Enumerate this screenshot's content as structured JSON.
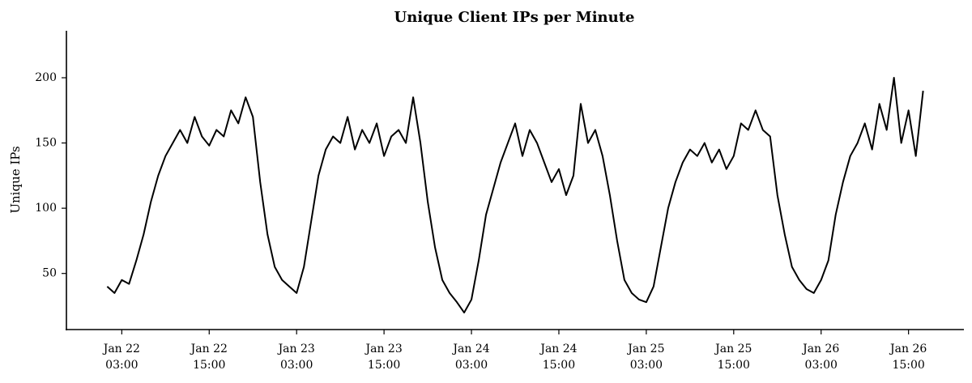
{
  "chart_data": {
    "type": "line",
    "title": "Unique Client IPs per Minute",
    "ylabel": "Unique IPs",
    "x": [
      "Jan 22 01:00",
      "Jan 22 02:00",
      "Jan 22 03:00",
      "Jan 22 04:00",
      "Jan 22 05:00",
      "Jan 22 06:00",
      "Jan 22 07:00",
      "Jan 22 08:00",
      "Jan 22 09:00",
      "Jan 22 10:00",
      "Jan 22 11:00",
      "Jan 22 12:00",
      "Jan 22 13:00",
      "Jan 22 14:00",
      "Jan 22 15:00",
      "Jan 22 16:00",
      "Jan 22 17:00",
      "Jan 22 18:00",
      "Jan 22 19:00",
      "Jan 22 20:00",
      "Jan 22 21:00",
      "Jan 22 22:00",
      "Jan 22 23:00",
      "Jan 23 00:00",
      "Jan 23 01:00",
      "Jan 23 02:00",
      "Jan 23 03:00",
      "Jan 23 04:00",
      "Jan 23 05:00",
      "Jan 23 06:00",
      "Jan 23 07:00",
      "Jan 23 08:00",
      "Jan 23 09:00",
      "Jan 23 10:00",
      "Jan 23 11:00",
      "Jan 23 12:00",
      "Jan 23 13:00",
      "Jan 23 14:00",
      "Jan 23 15:00",
      "Jan 23 16:00",
      "Jan 23 17:00",
      "Jan 23 18:00",
      "Jan 23 19:00",
      "Jan 23 20:00",
      "Jan 23 21:00",
      "Jan 23 22:00",
      "Jan 23 23:00",
      "Jan 24 00:00",
      "Jan 24 01:00",
      "Jan 24 02:00",
      "Jan 24 03:00",
      "Jan 24 04:00",
      "Jan 24 05:00",
      "Jan 24 06:00",
      "Jan 24 07:00",
      "Jan 24 08:00",
      "Jan 24 09:00",
      "Jan 24 10:00",
      "Jan 24 11:00",
      "Jan 24 12:00",
      "Jan 24 13:00",
      "Jan 24 14:00",
      "Jan 24 15:00",
      "Jan 24 16:00",
      "Jan 24 17:00",
      "Jan 24 18:00",
      "Jan 24 19:00",
      "Jan 24 20:00",
      "Jan 24 21:00",
      "Jan 24 22:00",
      "Jan 24 23:00",
      "Jan 25 00:00",
      "Jan 25 01:00",
      "Jan 25 02:00",
      "Jan 25 03:00",
      "Jan 25 04:00",
      "Jan 25 05:00",
      "Jan 25 06:00",
      "Jan 25 07:00",
      "Jan 25 08:00",
      "Jan 25 09:00",
      "Jan 25 10:00",
      "Jan 25 11:00",
      "Jan 25 12:00",
      "Jan 25 13:00",
      "Jan 25 14:00",
      "Jan 25 15:00",
      "Jan 25 16:00",
      "Jan 25 17:00",
      "Jan 25 18:00",
      "Jan 25 19:00",
      "Jan 25 20:00",
      "Jan 25 21:00",
      "Jan 25 22:00",
      "Jan 25 23:00",
      "Jan 26 00:00",
      "Jan 26 01:00",
      "Jan 26 02:00",
      "Jan 26 03:00",
      "Jan 26 04:00",
      "Jan 26 05:00",
      "Jan 26 06:00",
      "Jan 26 07:00",
      "Jan 26 08:00",
      "Jan 26 09:00",
      "Jan 26 10:00",
      "Jan 26 11:00",
      "Jan 26 12:00",
      "Jan 26 13:00",
      "Jan 26 14:00",
      "Jan 26 15:00",
      "Jan 26 16:00",
      "Jan 26 17:00"
    ],
    "values": [
      40,
      35,
      45,
      42,
      60,
      80,
      105,
      125,
      140,
      150,
      160,
      150,
      170,
      155,
      148,
      160,
      155,
      175,
      165,
      185,
      170,
      120,
      80,
      55,
      45,
      40,
      35,
      55,
      90,
      125,
      145,
      155,
      150,
      170,
      145,
      160,
      150,
      165,
      140,
      155,
      160,
      150,
      185,
      150,
      105,
      70,
      45,
      35,
      28,
      20,
      30,
      60,
      95,
      115,
      135,
      150,
      165,
      140,
      160,
      150,
      135,
      120,
      130,
      110,
      125,
      180,
      150,
      160,
      140,
      110,
      75,
      45,
      35,
      30,
      28,
      40,
      70,
      100,
      120,
      135,
      145,
      140,
      150,
      135,
      145,
      130,
      140,
      165,
      160,
      175,
      160,
      155,
      110,
      80,
      55,
      45,
      38,
      35,
      45,
      60,
      95,
      120,
      140,
      150,
      165,
      145,
      180,
      160,
      200,
      150,
      175,
      140,
      190
    ],
    "color": "#000000",
    "ylim": [
      7,
      236
    ],
    "yticks": [
      50,
      100,
      150,
      200
    ],
    "xticks": [
      "Jan 22\n03:00",
      "Jan 22\n15:00",
      "Jan 23\n03:00",
      "Jan 23\n15:00",
      "Jan 24\n03:00",
      "Jan 24\n15:00",
      "Jan 25\n03:00",
      "Jan 25\n15:00",
      "Jan 26\n03:00",
      "Jan 26\n15:00"
    ]
  }
}
